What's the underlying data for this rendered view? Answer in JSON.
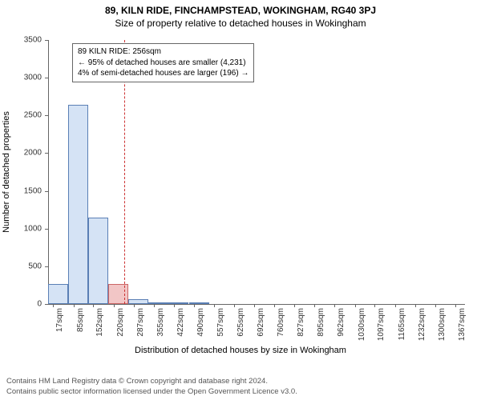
{
  "titles": {
    "main": "89, KILN RIDE, FINCHAMPSTEAD, WOKINGHAM, RG40 3PJ",
    "sub": "Size of property relative to detached houses in Wokingham"
  },
  "chart": {
    "type": "histogram",
    "ylabel": "Number of detached properties",
    "xlabel": "Distribution of detached houses by size in Wokingham",
    "ylim": [
      0,
      3500
    ],
    "ytick_step": 500,
    "yticks": [
      0,
      500,
      1000,
      1500,
      2000,
      2500,
      3000,
      3500
    ],
    "xlim": [
      0,
      1400
    ],
    "xticks": {
      "positions": [
        17,
        85,
        152,
        220,
        287,
        355,
        422,
        490,
        557,
        625,
        692,
        760,
        827,
        895,
        962,
        1030,
        1097,
        1165,
        1232,
        1300,
        1367
      ],
      "labels": [
        "17sqm",
        "85sqm",
        "152sqm",
        "220sqm",
        "287sqm",
        "355sqm",
        "422sqm",
        "490sqm",
        "557sqm",
        "625sqm",
        "692sqm",
        "760sqm",
        "827sqm",
        "895sqm",
        "962sqm",
        "1030sqm",
        "1097sqm",
        "1165sqm",
        "1232sqm",
        "1300sqm",
        "1367sqm"
      ]
    },
    "bin_width": 67.5,
    "bars": {
      "starts": [
        0,
        67.5,
        135,
        202.5,
        270,
        337.5,
        405,
        472.5
      ],
      "heights": [
        270,
        2640,
        1150,
        270,
        60,
        25,
        10,
        5
      ]
    },
    "bar_fill": "#d5e3f5",
    "bar_stroke": "#5a7fb5",
    "highlight_fill": "#f2c6c6",
    "highlight_stroke": "#cc6666",
    "ref_line_x": 256,
    "ref_line_color": "#cc3333",
    "axis_color": "#666666",
    "tick_fontsize": 10,
    "label_fontsize": 11,
    "background_color": "#ffffff"
  },
  "annotation": {
    "line1": "89 KILN RIDE: 256sqm",
    "line2": "← 95% of detached houses are smaller (4,231)",
    "line3": "4% of semi-detached houses are larger (196) →",
    "border_color": "#666666",
    "bg_color": "#ffffff",
    "fontsize": 10
  },
  "footer": {
    "line1": "Contains HM Land Registry data © Crown copyright and database right 2024.",
    "line2": "Contains public sector information licensed under the Open Government Licence v3.0."
  }
}
